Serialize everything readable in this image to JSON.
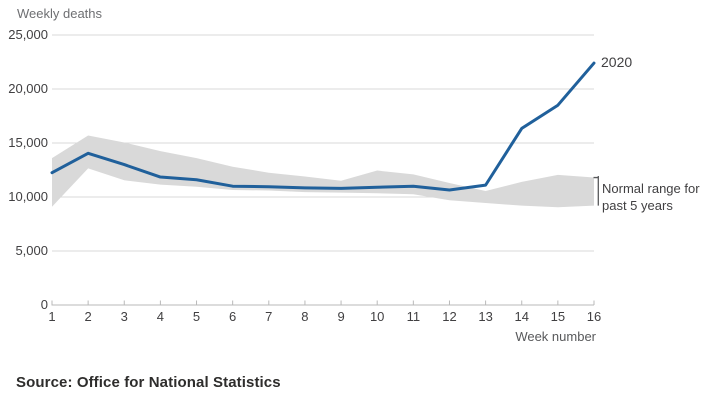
{
  "colors": {
    "line": "#20609b",
    "band": "#d9d9d9",
    "grid": "#d9d9d9",
    "axis": "#b9b9b9",
    "bracket": "#58595b",
    "tick_text": "#414042",
    "muted_text": "#6e6f72"
  },
  "chart_data": {
    "type": "line",
    "title": "Weekly deaths",
    "xlabel": "Week number",
    "ylabel": "Weekly deaths",
    "ylim": [
      0,
      25000
    ],
    "grid": "horizontal",
    "legend_position": "direct-labels-right",
    "x_tick_labels": [
      "1",
      "2",
      "3",
      "4",
      "5",
      "6",
      "7",
      "8",
      "9",
      "10",
      "11",
      "12",
      "13",
      "14",
      "15",
      "16"
    ],
    "y_tick_values": [
      0,
      5000,
      10000,
      15000,
      20000,
      25000
    ],
    "y_tick_labels": [
      "0",
      "5,000",
      "10,000",
      "15,000",
      "20,000",
      "25,000"
    ],
    "categories": [
      1,
      2,
      3,
      4,
      5,
      6,
      7,
      8,
      9,
      10,
      11,
      12,
      13,
      14,
      15,
      16
    ],
    "series": [
      {
        "name": "2020",
        "type": "line",
        "values": [
          12250,
          14050,
          13000,
          11850,
          11600,
          11000,
          10950,
          10850,
          10800,
          10900,
          11000,
          10650,
          11100,
          16350,
          18500,
          22400
        ]
      },
      {
        "name": "Normal range for past 5 years",
        "type": "band",
        "upper": [
          13600,
          15700,
          15050,
          14250,
          13600,
          12800,
          12250,
          11900,
          11500,
          12450,
          12100,
          11300,
          10550,
          11400,
          12050,
          11800
        ],
        "lower": [
          9100,
          12650,
          11550,
          11150,
          10950,
          10650,
          10600,
          10450,
          10400,
          10350,
          10250,
          9700,
          9450,
          9200,
          9050,
          9200
        ]
      }
    ],
    "annotations": {
      "line_label": "2020",
      "band_label_lines": [
        "Normal range for",
        "past 5 years"
      ]
    }
  },
  "footer": {
    "source": "Source: Office for National Statistics"
  }
}
